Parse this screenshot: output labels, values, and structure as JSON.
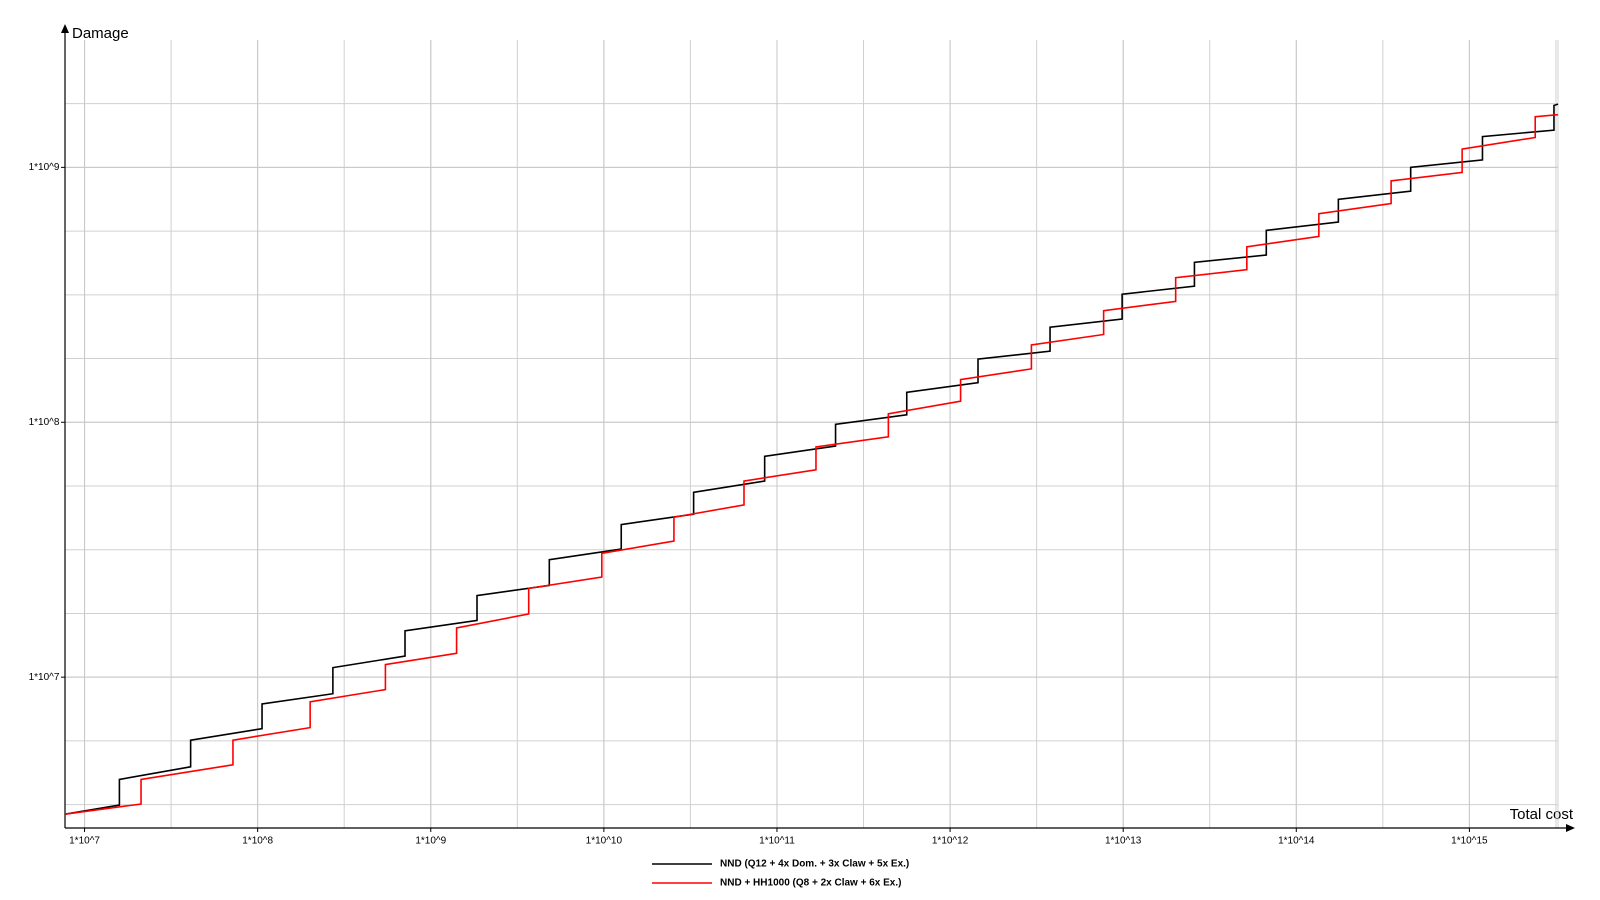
{
  "chart_data": {
    "type": "line",
    "x_label": "Total cost",
    "y_label": "Damage",
    "xscale": "log",
    "yscale": "log",
    "grid": true,
    "minor_grid": true,
    "legend": "bottom",
    "xlim": [
      7710000,
      3250000000000000
    ],
    "ylim": [
      2560000,
      3160000000
    ],
    "xticks": [
      {
        "value": 10000000,
        "label": "1*10^7"
      },
      {
        "value": 100000000,
        "label": "1*10^8"
      },
      {
        "value": 1000000000,
        "label": "1*10^9"
      },
      {
        "value": 10000000000,
        "label": "1*10^10"
      },
      {
        "value": 100000000000,
        "label": "1*10^11"
      },
      {
        "value": 1000000000000,
        "label": "1*10^12"
      },
      {
        "value": 10000000000000,
        "label": "1*10^13"
      },
      {
        "value": 100000000000000,
        "label": "1*10^14"
      },
      {
        "value": 1000000000000000,
        "label": "1*10^15"
      }
    ],
    "yticks": [
      {
        "value": 10000000,
        "label": "1*10^7"
      },
      {
        "value": 100000000,
        "label": "1*10^8"
      },
      {
        "value": 1000000000,
        "label": "1*10^9"
      }
    ],
    "series": [
      {
        "name": "NND (Q12 + 4x Dom. + 3x Claw + 5x Ex.)",
        "color": "#000000",
        "x": [
          7710000,
          15900000,
          15900000,
          41000000,
          41000000,
          106000000,
          106000000,
          272000000,
          272000000,
          710000000,
          710000000,
          1850000000,
          1850000000,
          4840000000,
          4840000000,
          12600000000,
          12600000000,
          33000000000,
          33000000000,
          84900000000,
          84900000000,
          218000000000,
          218000000000,
          562000000000,
          562000000000,
          1450000000000,
          1450000000000,
          3780000000000,
          3780000000000,
          9860000000000,
          9860000000000,
          25800000000000,
          25800000000000,
          67100000000000,
          67100000000000,
          175000000000000,
          175000000000000,
          458000000000000,
          458000000000000,
          1190000000000000,
          1190000000000000,
          3080000000000000,
          3080000000000000,
          3250000000000000
        ],
        "values": [
          2900000,
          3150000,
          3970000,
          4450000,
          5660000,
          6280000,
          7850000,
          8610000,
          10900000,
          12100000,
          15200000,
          16700000,
          20900000,
          22900000,
          28900000,
          31800000,
          39700000,
          43600000,
          53100000,
          58800000,
          73500000,
          80700000,
          98200000,
          107000000,
          131000000,
          143000000,
          177000000,
          190000000,
          236000000,
          254000000,
          318000000,
          342000000,
          424000000,
          453000000,
          566000000,
          610000000,
          749000000,
          807000000,
          1000000000,
          1070000000,
          1320000000,
          1400000000,
          1750000000,
          1770000000
        ]
      },
      {
        "name": "NND + HH1000 (Q8 + 2x Claw + 6x Ex.)",
        "color": "#ff0000",
        "x": [
          7710000,
          21200000,
          21200000,
          72000000,
          72000000,
          201000000,
          201000000,
          547000000,
          547000000,
          1410000000,
          1410000000,
          3680000000,
          3680000000,
          9730000000,
          9730000000,
          25400000000,
          25400000000,
          64500000000,
          64500000000,
          168000000000,
          168000000000,
          440000000000,
          440000000000,
          1150000000000,
          1150000000000,
          2950000000000,
          2950000000000,
          7710000000000,
          7710000000000,
          20100000000000,
          20100000000000,
          51800000000000,
          51800000000000,
          135000000000000,
          135000000000000,
          353000000000000,
          353000000000000,
          908000000000000,
          908000000000000,
          2400000000000000,
          2400000000000000,
          3250000000000000
        ],
        "values": [
          2900000,
          3180000,
          3970000,
          4530000,
          5660000,
          6340000,
          8000000,
          8940000,
          11200000,
          12400000,
          15600000,
          17700000,
          22300000,
          24700000,
          30600000,
          34200000,
          42400000,
          47400000,
          58800000,
          65100000,
          80000000,
          87700000,
          108000000,
          121000000,
          147000000,
          162000000,
          201000000,
          221000000,
          274000000,
          298000000,
          369000000,
          397000000,
          488000000,
          536000000,
          658000000,
          721000000,
          885000000,
          955000000,
          1180000000,
          1310000000,
          1580000000,
          1610000000
        ]
      }
    ]
  }
}
